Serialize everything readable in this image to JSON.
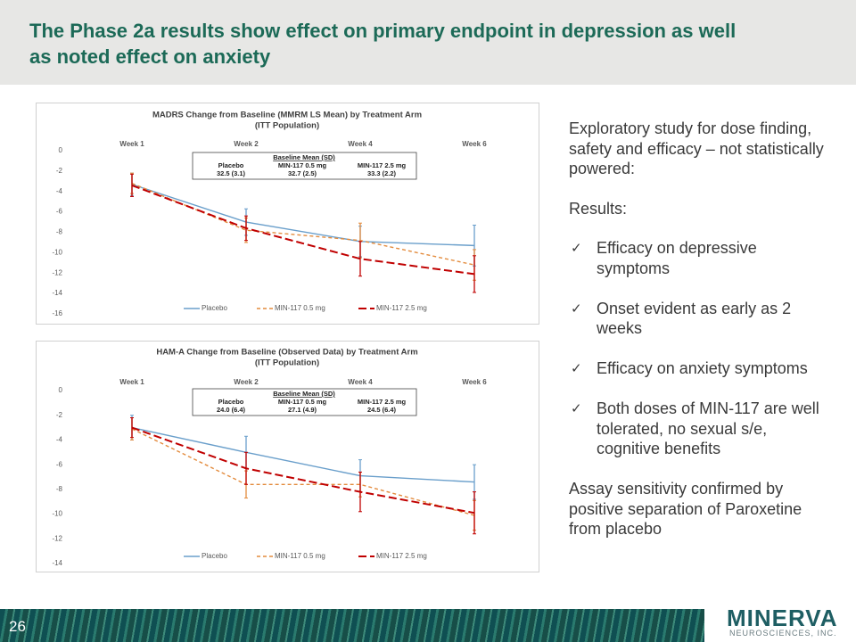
{
  "slide_title": "The Phase 2a results show effect on primary endpoint in depression as well as noted effect on anxiety",
  "chart_data": [
    {
      "type": "line",
      "title": "MADRS Change from Baseline (MMRM LS Mean) by Treatment Arm",
      "subtitle": "(ITT Population)",
      "categories": [
        "Week 1",
        "Week 2",
        "Week 4",
        "Week 6"
      ],
      "ylim": [
        -16,
        0
      ],
      "yticks": [
        0,
        -2,
        -4,
        -6,
        -8,
        -10,
        -12,
        -14,
        -16
      ],
      "grid": false,
      "series": [
        {
          "name": "Placebo",
          "color": "#6a9fcb",
          "style": "solid",
          "values": [
            -3.3,
            -7.0,
            -8.9,
            -9.3
          ],
          "errors": [
            1.1,
            1.3,
            1.5,
            2.0
          ]
        },
        {
          "name": "MIN-117 0.5 mg",
          "color": "#e38b3d",
          "style": "dashed",
          "values": [
            -3.2,
            -7.8,
            -8.8,
            -11.2
          ],
          "errors": [
            1.0,
            1.2,
            1.7,
            1.5
          ]
        },
        {
          "name": "MIN-117 2.5 mg",
          "color": "#c00000",
          "style": "dashed",
          "values": [
            -3.4,
            -7.6,
            -10.6,
            -12.1
          ],
          "errors": [
            1.1,
            1.2,
            1.7,
            1.8
          ]
        }
      ],
      "inset": {
        "title": "Baseline Mean (SD)",
        "columns": [
          "Placebo",
          "MIN-117 0.5 mg",
          "MIN-117 2.5 mg"
        ],
        "values": [
          "32.5 (3.1)",
          "32.7 (2.5)",
          "33.3 (2.2)"
        ]
      }
    },
    {
      "type": "line",
      "title": "HAM-A Change from Baseline (Observed Data) by Treatment Arm",
      "subtitle": "(ITT Population)",
      "categories": [
        "Week 1",
        "Week 2",
        "Week 4",
        "Week 6"
      ],
      "ylim": [
        -14,
        0
      ],
      "yticks": [
        0,
        -2,
        -4,
        -6,
        -8,
        -10,
        -12,
        -14
      ],
      "grid": false,
      "series": [
        {
          "name": "Placebo",
          "color": "#6a9fcb",
          "style": "solid",
          "values": [
            -3.0,
            -5.0,
            -6.9,
            -7.4
          ],
          "errors": [
            1.0,
            1.3,
            1.3,
            1.4
          ]
        },
        {
          "name": "MIN-117 0.5 mg",
          "color": "#e38b3d",
          "style": "dashed",
          "values": [
            -3.1,
            -7.6,
            -7.6,
            -10.1
          ],
          "errors": [
            0.9,
            1.1,
            1.0,
            1.2
          ]
        },
        {
          "name": "MIN-117 2.5 mg",
          "color": "#c00000",
          "style": "dashed",
          "values": [
            -3.0,
            -6.3,
            -8.2,
            -9.9
          ],
          "errors": [
            0.8,
            1.3,
            1.6,
            1.7
          ]
        }
      ],
      "inset": {
        "title": "Baseline Mean (SD)",
        "columns": [
          "Placebo",
          "MIN-117 0.5 mg",
          "MIN-117 2.5 mg"
        ],
        "values": [
          "24.0 (6.4)",
          "27.1 (4.9)",
          "24.5 (6.4)"
        ]
      }
    }
  ],
  "sidebar": {
    "intro": "Exploratory study for dose finding, safety and efficacy – not statistically powered:",
    "results_heading": "Results:",
    "bullets": [
      "Efficacy on depressive symptoms",
      "Onset evident as early as 2 weeks",
      "Efficacy on anxiety symptoms",
      "Both doses of MIN-117 are well tolerated, no sexual s/e, cognitive benefits"
    ],
    "closing": "Assay sensitivity confirmed by positive separation of Paroxetine from placebo"
  },
  "footer": {
    "page_number": "26",
    "logo": "MINERVA",
    "logo_sub": "NEUROSCIENCES, INC."
  }
}
